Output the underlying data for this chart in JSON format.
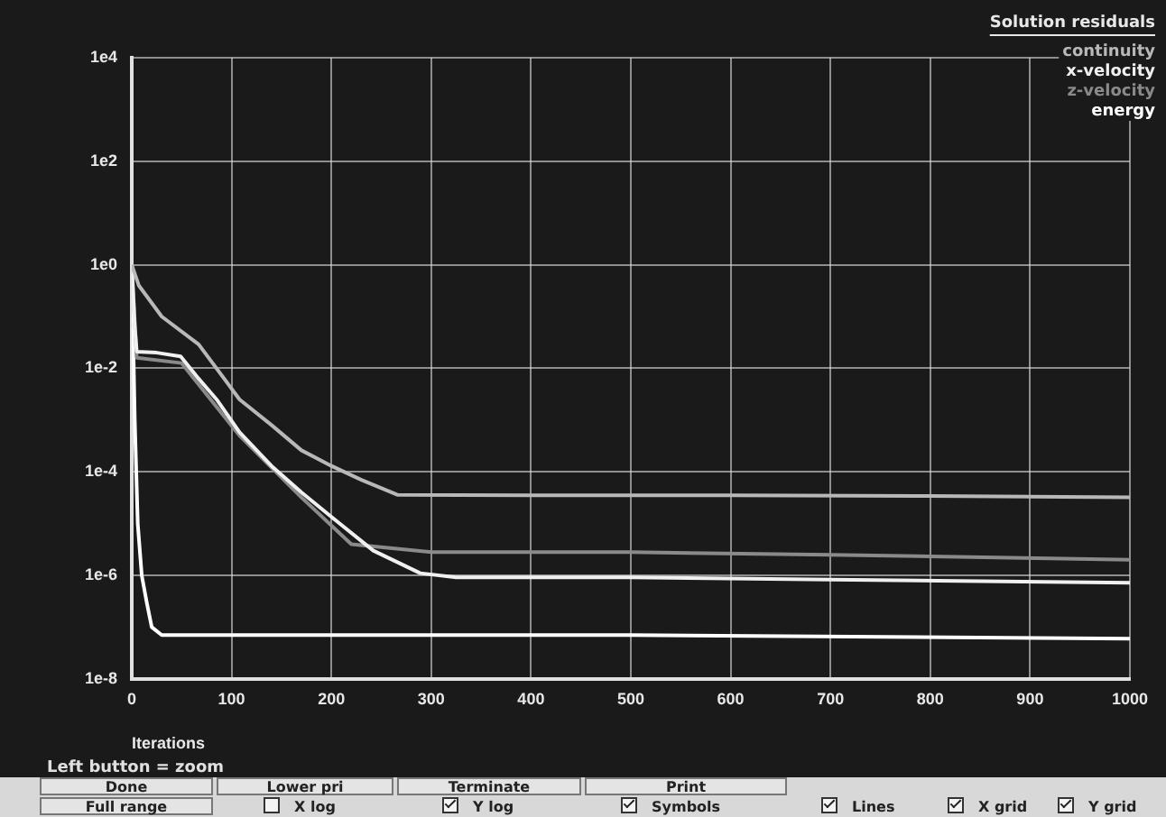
{
  "chart_data": {
    "type": "line",
    "legend_title": "Solution residuals",
    "xlabel": "Iterations",
    "log": "y",
    "grid": true,
    "legend": "top right",
    "marker": "none",
    "line_style": "solid",
    "xlim": [
      0,
      1000
    ],
    "xticks": [
      0,
      100,
      200,
      300,
      400,
      500,
      600,
      700,
      800,
      900,
      1000
    ],
    "ylim": [
      1e-08,
      10000
    ],
    "yticks": [
      {
        "value": 10000,
        "label": "1e4"
      },
      {
        "value": 100,
        "label": "1e2"
      },
      {
        "value": 1,
        "label": "1e0"
      },
      {
        "value": 0.01,
        "label": "1e-2"
      },
      {
        "value": 0.0001,
        "label": "1e-4"
      },
      {
        "value": 1e-06,
        "label": "1e-6"
      },
      {
        "value": 1e-08,
        "label": "1e-8"
      }
    ],
    "series": [
      {
        "name": "continuity",
        "color": "#b8b8b8",
        "x": [
          0,
          7,
          30,
          67,
          108,
          140,
          170,
          200,
          230,
          266,
          400,
          600,
          800,
          1000
        ],
        "values": [
          1,
          0.4,
          0.1,
          0.029,
          0.0025,
          0.0008,
          0.00026,
          0.00013,
          7e-05,
          3.6e-05,
          3.5e-05,
          3.5e-05,
          3.4e-05,
          3.2e-05
        ]
      },
      {
        "name": "x-velocity",
        "color": "#f0f0f0",
        "x": [
          0,
          3,
          5,
          25,
          49,
          67,
          85,
          108,
          140,
          170,
          199,
          242,
          289,
          325,
          500,
          700,
          1000
        ],
        "values": [
          1,
          0.063,
          0.021,
          0.02,
          0.017,
          0.0063,
          0.0025,
          0.00058,
          0.00013,
          4e-05,
          1.4e-05,
          3e-06,
          1.1e-06,
          9.1e-07,
          9.1e-07,
          8.3e-07,
          7.2e-07
        ]
      },
      {
        "name": "z-velocity",
        "color": "#8a8a8a",
        "x": [
          0,
          5,
          50,
          108,
          170,
          220,
          300,
          500,
          700,
          1000
        ],
        "values": [
          1,
          0.016,
          0.0126,
          0.0005,
          3.2e-05,
          4e-06,
          2.8e-06,
          2.8e-06,
          2.5e-06,
          2e-06
        ]
      },
      {
        "name": "energy",
        "color": "#ffffff",
        "x": [
          0,
          3,
          6,
          10,
          15,
          20,
          30,
          500,
          1000
        ],
        "values": [
          1,
          0.001,
          1e-05,
          1e-06,
          3e-07,
          1e-07,
          7e-08,
          7e-08,
          6e-08
        ]
      }
    ],
    "annotations": [
      "Left button = zoom",
      "Done",
      "Lower pri",
      "Terminate",
      "Print",
      "Full range",
      "X log",
      "Y log",
      "Symbols",
      "Lines",
      "X grid",
      "Y grid"
    ]
  }
}
